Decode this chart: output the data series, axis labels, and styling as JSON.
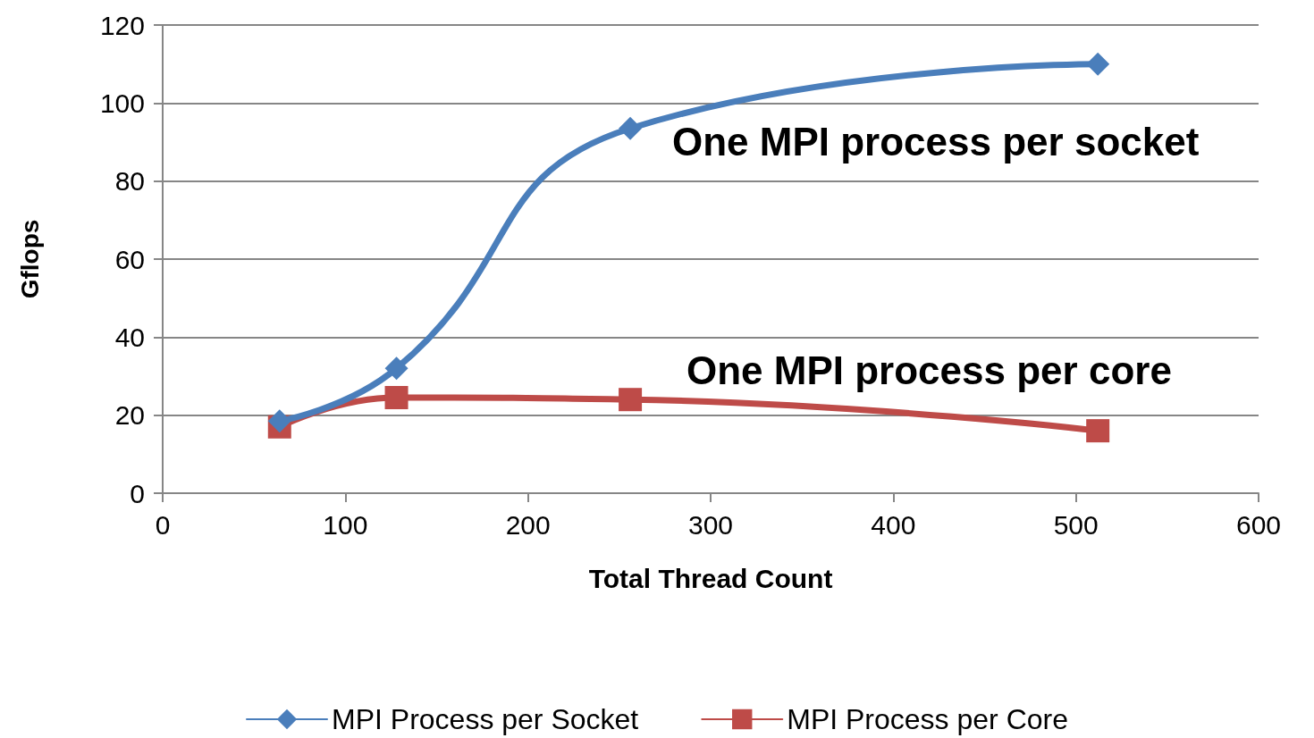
{
  "chart_data": {
    "type": "line",
    "xlabel": "Total Thread Count",
    "ylabel": "Gflops",
    "x": [
      64,
      128,
      256,
      512
    ],
    "series": [
      {
        "name": "MPI Process per Socket",
        "color": "#4a7ebb",
        "marker": "diamond",
        "values": [
          18.5,
          32,
          93.5,
          110
        ]
      },
      {
        "name": "MPI Process per Core",
        "color": "#be4b48",
        "marker": "square",
        "values": [
          17,
          24.5,
          24,
          16
        ]
      }
    ],
    "xlim": [
      0,
      600
    ],
    "xticks": [
      0,
      100,
      200,
      300,
      400,
      500,
      600
    ],
    "ylim": [
      0,
      120
    ],
    "yticks": [
      0,
      20,
      40,
      60,
      80,
      100,
      120
    ],
    "grid": "y",
    "legend": "bottom",
    "line_style": "solid",
    "annotations": [
      "One MPI process per socket",
      "One MPI process per core"
    ]
  }
}
